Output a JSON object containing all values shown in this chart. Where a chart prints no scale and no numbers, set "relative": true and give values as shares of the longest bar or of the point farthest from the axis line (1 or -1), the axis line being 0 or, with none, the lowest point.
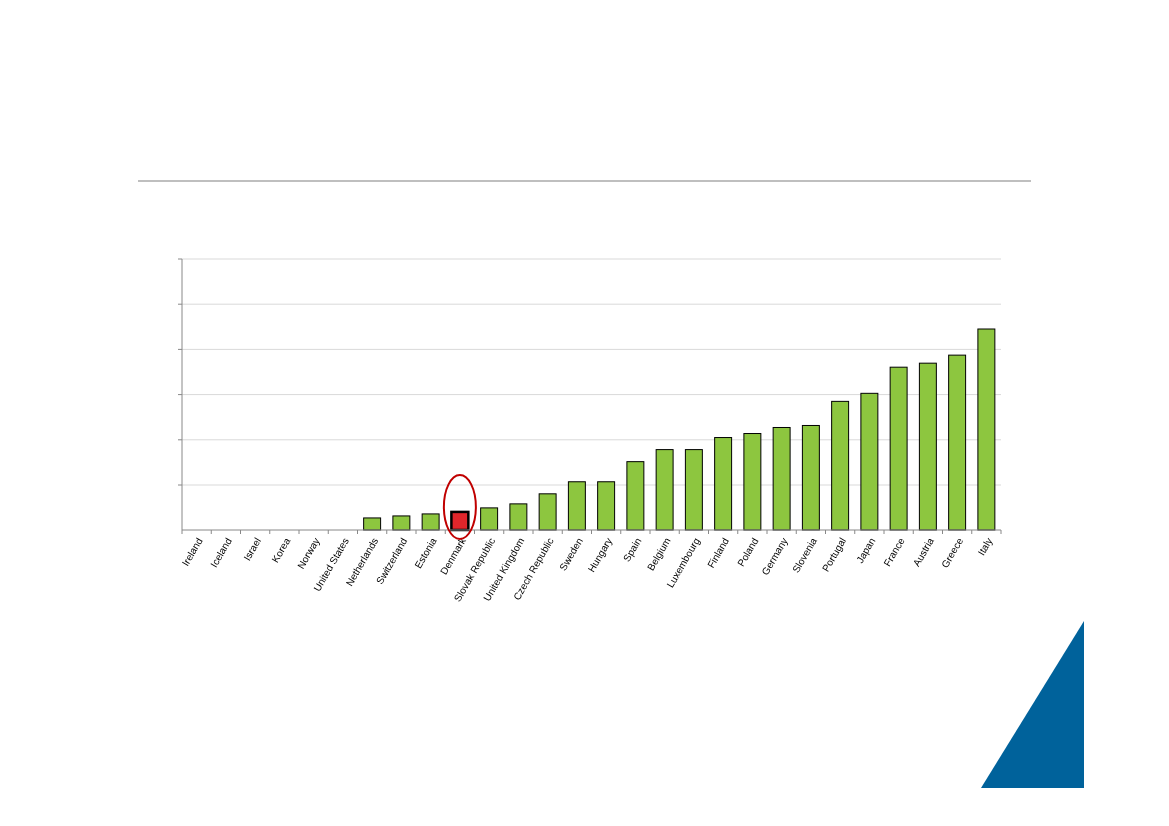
{
  "chart_data": {
    "type": "bar",
    "relative": true,
    "grid": "y",
    "categories": [
      "Ireland",
      "Iceland",
      "Israel",
      "Korea",
      "Norway",
      "United States",
      "Netherlands",
      "Switzerland",
      "Estonia",
      "Denmark",
      "Slovak Republic",
      "United Kingdom",
      "Czech Republic",
      "Sweden",
      "Hungary",
      "Spain",
      "Belgium",
      "Luxembourg",
      "Finland",
      "Poland",
      "Germany",
      "Slovenia",
      "Portugal",
      "Japan",
      "France",
      "Austria",
      "Greece",
      "Italy"
    ],
    "values": [
      0,
      0,
      0,
      0,
      0,
      0,
      0.06,
      0.07,
      0.08,
      0.09,
      0.11,
      0.13,
      0.18,
      0.24,
      0.24,
      0.34,
      0.4,
      0.4,
      0.46,
      0.48,
      0.51,
      0.52,
      0.64,
      0.68,
      0.81,
      0.83,
      0.87,
      1
    ],
    "colors": [
      "#8dc63f",
      "#8dc63f",
      "#8dc63f",
      "#8dc63f",
      "#8dc63f",
      "#8dc63f",
      "#8dc63f",
      "#8dc63f",
      "#8dc63f",
      "#e0262b",
      "#8dc63f",
      "#8dc63f",
      "#8dc63f",
      "#8dc63f",
      "#8dc63f",
      "#8dc63f",
      "#8dc63f",
      "#8dc63f",
      "#8dc63f",
      "#8dc63f",
      "#8dc63f",
      "#8dc63f",
      "#8dc63f",
      "#8dc63f",
      "#8dc63f",
      "#8dc63f",
      "#8dc63f",
      "#8dc63f"
    ]
  }
}
